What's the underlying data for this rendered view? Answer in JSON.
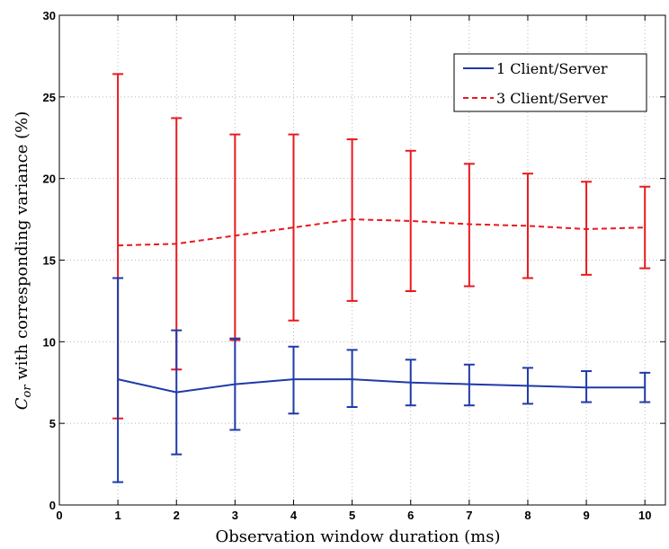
{
  "chart_data": {
    "type": "line",
    "xlabel": "Observation window duration (ms)",
    "ylabel_symbol": "C",
    "ylabel_subscript": "or",
    "ylabel_rest": " with corresponding variance (%)",
    "xlim": [
      0,
      10.35
    ],
    "ylim": [
      0,
      30
    ],
    "xticks": [
      0,
      1,
      2,
      3,
      4,
      5,
      6,
      7,
      8,
      9,
      10
    ],
    "yticks": [
      0,
      5,
      10,
      15,
      20,
      25,
      30
    ],
    "grid": true,
    "legend_position": "top-right",
    "series": [
      {
        "name": "1 Client/Server",
        "color": "#1f3aa8",
        "line_style": "solid",
        "x": [
          1,
          2,
          3,
          4,
          5,
          6,
          7,
          8,
          9,
          10
        ],
        "y": [
          7.7,
          6.9,
          7.4,
          7.7,
          7.7,
          7.5,
          7.4,
          7.3,
          7.2,
          7.2
        ],
        "err_low": [
          1.4,
          3.1,
          4.6,
          5.6,
          6.0,
          6.1,
          6.1,
          6.2,
          6.3,
          6.3
        ],
        "err_high": [
          13.9,
          10.7,
          10.2,
          9.7,
          9.5,
          8.9,
          8.6,
          8.4,
          8.2,
          8.1
        ]
      },
      {
        "name": "3 Client/Server",
        "color": "#e8191f",
        "line_style": "dashed",
        "x": [
          1,
          2,
          3,
          4,
          5,
          6,
          7,
          8,
          9,
          10
        ],
        "y": [
          15.9,
          16.0,
          16.5,
          17.0,
          17.5,
          17.4,
          17.2,
          17.1,
          16.9,
          17.0
        ],
        "err_low": [
          5.3,
          8.3,
          10.1,
          11.3,
          12.5,
          13.1,
          13.4,
          13.9,
          14.1,
          14.5
        ],
        "err_high": [
          26.4,
          23.7,
          22.7,
          22.7,
          22.4,
          21.7,
          20.9,
          20.3,
          19.8,
          19.5
        ]
      }
    ]
  }
}
